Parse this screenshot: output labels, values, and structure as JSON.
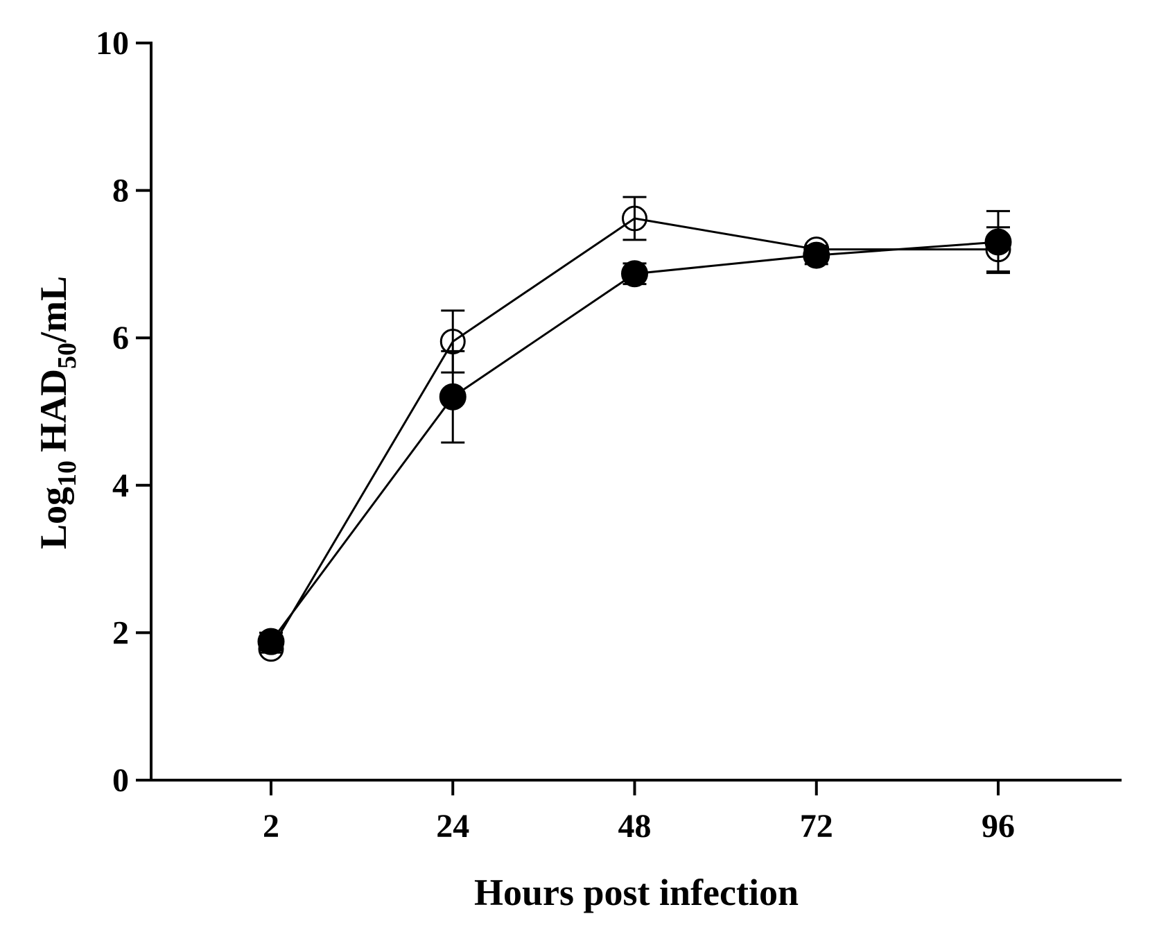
{
  "chart_data": {
    "type": "line",
    "xlabel": "Hours post infection",
    "ylabel": [
      "Log",
      "10",
      "HAD",
      "50",
      "/mL"
    ],
    "categories": [
      "2",
      "24",
      "48",
      "72",
      "96"
    ],
    "series": [
      {
        "color": "#000000",
        "marker": "open",
        "values": [
          1.78,
          5.95,
          7.62,
          7.2,
          7.2
        ],
        "errors": [
          0.05,
          0.42,
          0.29,
          0.05,
          0.3
        ]
      },
      {
        "color": "#000000",
        "marker": "filled",
        "values": [
          1.88,
          5.2,
          6.87,
          7.12,
          7.3
        ],
        "errors": [
          0.12,
          0.62,
          0.14,
          0.12,
          0.42
        ]
      }
    ],
    "ylim": [
      0,
      10
    ],
    "yticks": [
      0,
      2,
      4,
      6,
      8,
      10
    ],
    "grid": false
  }
}
